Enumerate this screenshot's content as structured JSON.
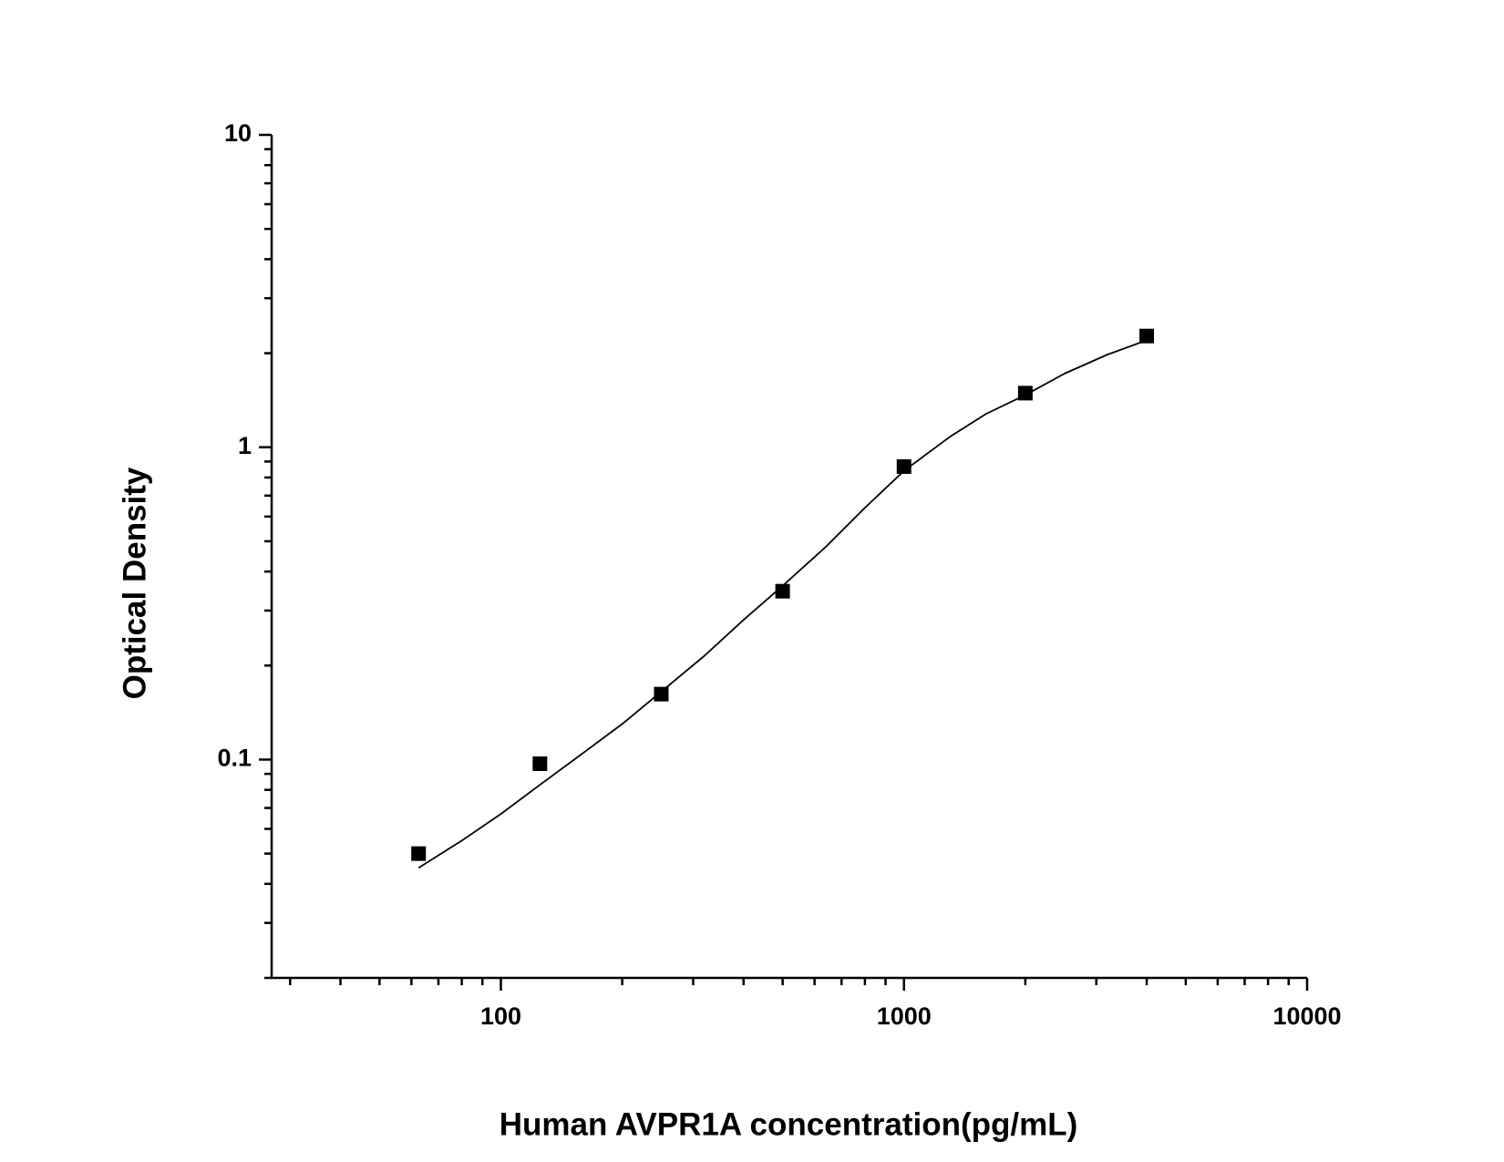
{
  "chart_data": {
    "type": "scatter",
    "x_label": "Human AVPR1A concentration(pg/mL)",
    "y_label": "Optical Density",
    "xscale": "log",
    "yscale": "log",
    "xlim": [
      27,
      10000
    ],
    "ylim": [
      0.02,
      10
    ],
    "xticks": [
      100,
      1000,
      10000
    ],
    "yticks": [
      0.1,
      1,
      10
    ],
    "xminorticks": [
      30,
      40,
      50,
      60,
      70,
      80,
      90,
      200,
      300,
      400,
      500,
      600,
      700,
      800,
      900,
      2000,
      3000,
      4000,
      5000,
      6000,
      7000,
      8000,
      9000
    ],
    "yminorticks": [
      0.03,
      0.04,
      0.05,
      0.06,
      0.07,
      0.08,
      0.09,
      0.2,
      0.3,
      0.4,
      0.5,
      0.6,
      0.7,
      0.8,
      0.9,
      2,
      3,
      4,
      5,
      6,
      7,
      8,
      9
    ],
    "grid": false,
    "series": [
      {
        "color": "#000000",
        "marker": "square",
        "x": [
          62.5,
          125,
          250,
          500,
          1000,
          2000,
          4000
        ],
        "values": [
          0.05,
          0.097,
          0.162,
          0.346,
          0.867,
          1.49,
          2.27
        ]
      },
      {
        "color": "#000000",
        "marker": "none",
        "line": true,
        "x": [
          62.5,
          80,
          100,
          125,
          160,
          200,
          250,
          320,
          400,
          500,
          640,
          800,
          1000,
          1300,
          1600,
          2000,
          2500,
          3200,
          4000
        ],
        "values": [
          0.045,
          0.055,
          0.067,
          0.083,
          0.105,
          0.13,
          0.165,
          0.215,
          0.28,
          0.36,
          0.48,
          0.64,
          0.84,
          1.08,
          1.28,
          1.47,
          1.72,
          1.98,
          2.2
        ]
      }
    ]
  }
}
